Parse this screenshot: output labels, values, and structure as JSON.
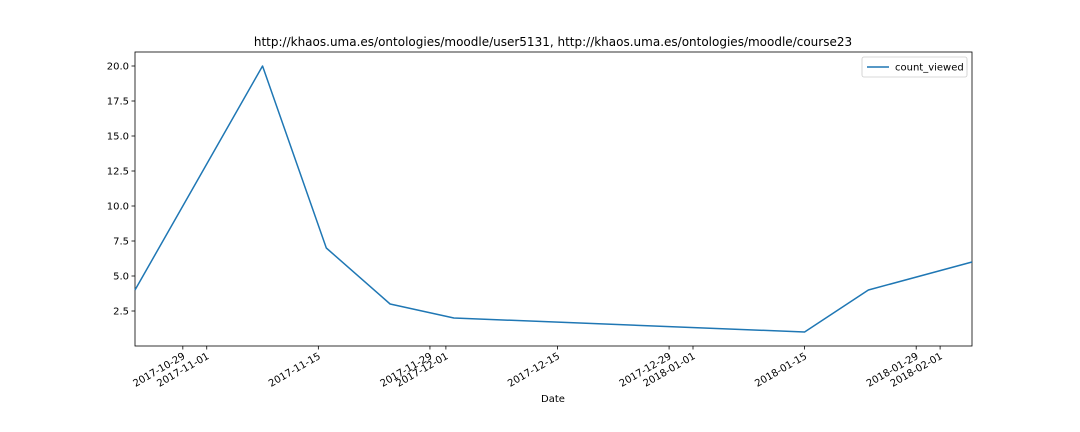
{
  "chart_data": {
    "type": "line",
    "title": "http://khaos.uma.es/ontologies/moodle/user5131, http://khaos.uma.es/ontologies/moodle/course23",
    "xlabel": "Date",
    "ylabel": "",
    "xlim": [
      "2017-10-23",
      "2018-02-05"
    ],
    "ylim": [
      0.0,
      21.0
    ],
    "grid": false,
    "legend_position": "top-right",
    "x_ticks": [
      {
        "date": "2017-10-29",
        "label": "2017-10-29"
      },
      {
        "date": "2017-11-01",
        "label": "2017-11-01"
      },
      {
        "date": "2017-11-15",
        "label": "2017-11-15"
      },
      {
        "date": "2017-11-29",
        "label": "2017-11-29"
      },
      {
        "date": "2017-12-01",
        "label": "2017-12-01"
      },
      {
        "date": "2017-12-15",
        "label": "2017-12-15"
      },
      {
        "date": "2017-12-29",
        "label": "2017-12-29"
      },
      {
        "date": "2018-01-01",
        "label": "2018-01-01"
      },
      {
        "date": "2018-01-15",
        "label": "2018-01-15"
      },
      {
        "date": "2018-01-29",
        "label": "2018-01-29"
      },
      {
        "date": "2018-02-01",
        "label": "2018-02-01"
      }
    ],
    "y_ticks": [
      2.5,
      5.0,
      7.5,
      10.0,
      12.5,
      15.0,
      17.5,
      20.0
    ],
    "y_tick_labels": [
      "2.5",
      "5.0",
      "7.5",
      "10.0",
      "12.5",
      "15.0",
      "17.5",
      "20.0"
    ],
    "series": [
      {
        "name": "count_viewed",
        "color": "#1f77b4",
        "x": [
          "2017-10-23",
          "2017-11-08",
          "2017-11-16",
          "2017-11-24",
          "2017-12-02",
          "2018-01-15",
          "2018-01-23",
          "2018-02-05"
        ],
        "y": [
          4,
          20,
          7,
          3,
          2,
          1,
          4,
          6
        ]
      }
    ]
  }
}
